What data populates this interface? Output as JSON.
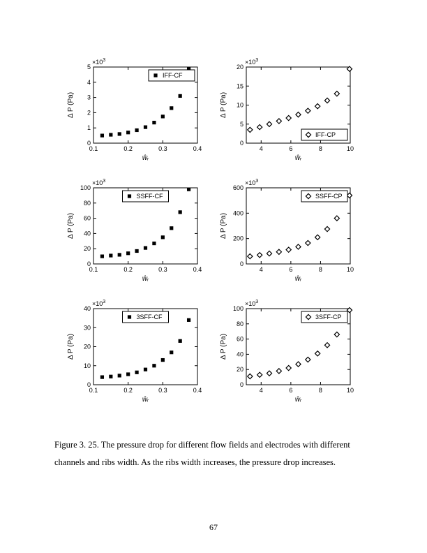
{
  "figure": {
    "exponent_prefix": "×10",
    "ylabel": "Δ P (Pa)",
    "xlabel_html": "ŵᵣ",
    "panels": [
      {
        "id": "iff-cf",
        "type": "scatter",
        "marker": "filled-square",
        "legend": "IFF-CF",
        "legend_pos": "top-right",
        "y_exp": "3",
        "xlim": [
          0.1,
          0.4
        ],
        "xticks": [
          0.1,
          0.2,
          0.3,
          0.4
        ],
        "ylim": [
          0,
          5
        ],
        "yticks": [
          0,
          1,
          2,
          3,
          4,
          5
        ],
        "data": [
          [
            0.125,
            0.5
          ],
          [
            0.15,
            0.55
          ],
          [
            0.175,
            0.6
          ],
          [
            0.2,
            0.7
          ],
          [
            0.225,
            0.85
          ],
          [
            0.25,
            1.05
          ],
          [
            0.275,
            1.35
          ],
          [
            0.3,
            1.75
          ],
          [
            0.325,
            2.3
          ],
          [
            0.35,
            3.1
          ],
          [
            0.375,
            4.9
          ]
        ]
      },
      {
        "id": "iff-cp",
        "type": "scatter",
        "marker": "open-diamond",
        "legend": "IFF-CP",
        "legend_pos": "bottom-right",
        "y_exp": "3",
        "xlim": [
          3,
          10
        ],
        "xticks": [
          4,
          6,
          8,
          10
        ],
        "ylim": [
          0,
          20
        ],
        "yticks": [
          0,
          5,
          10,
          15,
          20
        ],
        "data": [
          [
            3.25,
            3.5
          ],
          [
            3.9,
            4.2
          ],
          [
            4.55,
            5.0
          ],
          [
            5.2,
            5.8
          ],
          [
            5.85,
            6.6
          ],
          [
            6.5,
            7.5
          ],
          [
            7.15,
            8.5
          ],
          [
            7.8,
            9.7
          ],
          [
            8.45,
            11.2
          ],
          [
            9.1,
            13.0
          ],
          [
            9.95,
            19.5
          ]
        ]
      },
      {
        "id": "ssff-cf",
        "type": "scatter",
        "marker": "filled-square",
        "legend": "SSFF-CF",
        "legend_pos": "top-center",
        "y_exp": "3",
        "xlim": [
          0.1,
          0.4
        ],
        "xticks": [
          0.1,
          0.2,
          0.3,
          0.4
        ],
        "ylim": [
          0,
          100
        ],
        "yticks": [
          0,
          20,
          40,
          60,
          80,
          100
        ],
        "data": [
          [
            0.125,
            10
          ],
          [
            0.15,
            11
          ],
          [
            0.175,
            12
          ],
          [
            0.2,
            14
          ],
          [
            0.225,
            17
          ],
          [
            0.25,
            21
          ],
          [
            0.275,
            27
          ],
          [
            0.3,
            35
          ],
          [
            0.325,
            47
          ],
          [
            0.35,
            68
          ],
          [
            0.375,
            98
          ]
        ]
      },
      {
        "id": "ssff-cp",
        "type": "scatter",
        "marker": "open-diamond",
        "legend": "SSFF-CP",
        "legend_pos": "top-right",
        "y_exp": "3",
        "xlim": [
          3,
          10
        ],
        "xticks": [
          4,
          6,
          8,
          10
        ],
        "ylim": [
          0,
          600
        ],
        "yticks": [
          0,
          200,
          400,
          600
        ],
        "data": [
          [
            3.25,
            60
          ],
          [
            3.9,
            70
          ],
          [
            4.55,
            82
          ],
          [
            5.2,
            95
          ],
          [
            5.85,
            112
          ],
          [
            6.5,
            135
          ],
          [
            7.15,
            165
          ],
          [
            7.8,
            210
          ],
          [
            8.45,
            275
          ],
          [
            9.1,
            360
          ],
          [
            9.95,
            540
          ]
        ]
      },
      {
        "id": "3sff-cf",
        "type": "scatter",
        "marker": "filled-square",
        "legend": "3SFF-CF",
        "legend_pos": "top-center",
        "y_exp": "3",
        "xlim": [
          0.1,
          0.4
        ],
        "xticks": [
          0.1,
          0.2,
          0.3,
          0.4
        ],
        "ylim": [
          0,
          40
        ],
        "yticks": [
          0,
          10,
          20,
          30,
          40
        ],
        "data": [
          [
            0.125,
            4
          ],
          [
            0.15,
            4.3
          ],
          [
            0.175,
            4.8
          ],
          [
            0.2,
            5.5
          ],
          [
            0.225,
            6.5
          ],
          [
            0.25,
            8
          ],
          [
            0.275,
            10
          ],
          [
            0.3,
            13
          ],
          [
            0.325,
            17
          ],
          [
            0.35,
            23
          ],
          [
            0.375,
            34
          ]
        ]
      },
      {
        "id": "3sff-cp",
        "type": "scatter",
        "marker": "open-diamond",
        "legend": "3SFF-CP",
        "legend_pos": "top-right",
        "y_exp": "3",
        "xlim": [
          3,
          10
        ],
        "xticks": [
          4,
          6,
          8,
          10
        ],
        "ylim": [
          0,
          100
        ],
        "yticks": [
          0,
          20,
          40,
          60,
          80,
          100
        ],
        "data": [
          [
            3.25,
            11
          ],
          [
            3.9,
            13
          ],
          [
            4.55,
            15
          ],
          [
            5.2,
            18
          ],
          [
            5.85,
            22
          ],
          [
            6.5,
            27
          ],
          [
            7.15,
            33
          ],
          [
            7.8,
            41
          ],
          [
            8.45,
            52
          ],
          [
            9.1,
            66
          ],
          [
            9.95,
            98
          ]
        ]
      }
    ]
  },
  "caption": "Figure 3. 25. The pressure drop for different flow fields and electrodes with different channels and ribs width. As the ribs width increases, the pressure drop increases.",
  "page_number": "67"
}
